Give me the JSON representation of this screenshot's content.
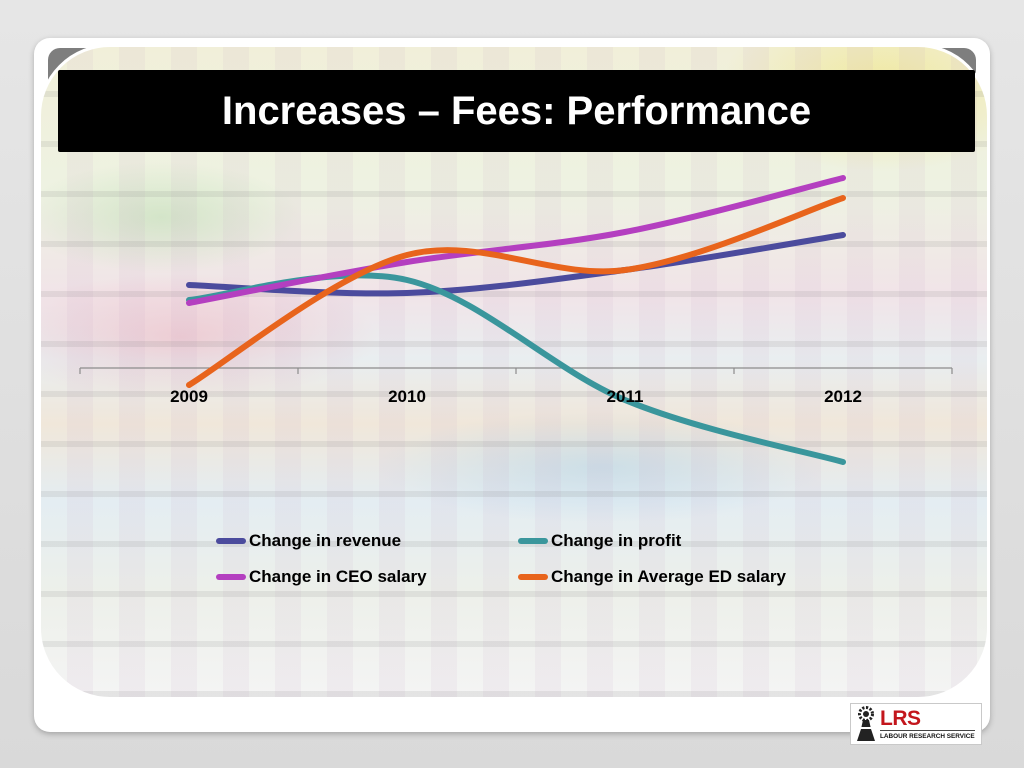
{
  "slide": {
    "title": "Increases – Fees: Performance"
  },
  "chart_data": {
    "type": "line",
    "title": "",
    "xlabel": "",
    "ylabel": "",
    "categories": [
      "2009",
      "2010",
      "2011",
      "2012"
    ],
    "series": [
      {
        "name": "Change in revenue",
        "color": "#4b4b9d",
        "values": [
          8.3,
          7.5,
          9.8,
          13.3
        ]
      },
      {
        "name": "Change in profit",
        "color": "#3a969c",
        "values": [
          6.8,
          8.8,
          -3.2,
          -9.4
        ]
      },
      {
        "name": "Change in CEO salary",
        "color": "#b43fc0",
        "values": [
          6.5,
          10.6,
          13.6,
          19.0
        ]
      },
      {
        "name": "Change in Average ED salary",
        "color": "#e8641c",
        "values": [
          -1.7,
          11.3,
          9.8,
          17.0
        ]
      }
    ],
    "ylim": [
      -10,
      20
    ],
    "smooth": true,
    "grid": false,
    "y_axis_visible": false,
    "legend": "bottom"
  },
  "logo": {
    "mark": "LRS",
    "name": "LABOUR RESEARCH SERVICE",
    "icon": "lrs-emblem-icon",
    "mark_color": "#c3161c"
  }
}
